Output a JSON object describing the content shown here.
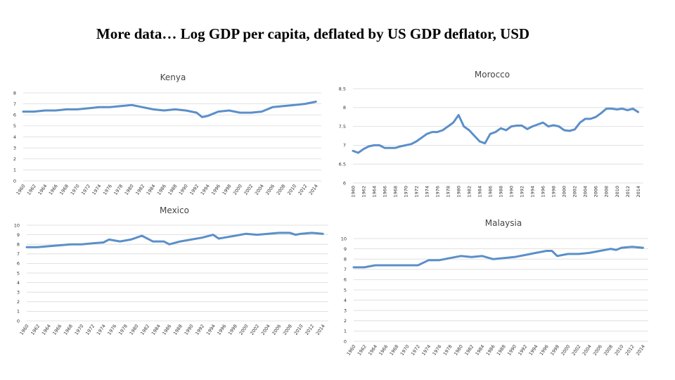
{
  "page": {
    "title": "More data… Log GDP per capita, deflated by US GDP deflator, USD"
  },
  "chart_data": [
    {
      "id": "kenya",
      "type": "line",
      "title": "Kenya",
      "xlabel": "",
      "ylabel": "",
      "ylim": [
        0,
        8
      ],
      "yticks": [
        "0",
        "1",
        "2",
        "3",
        "4",
        "5",
        "6",
        "7",
        "8"
      ],
      "xticks": [
        "1960",
        "1962",
        "1964",
        "1966",
        "1968",
        "1970",
        "1972",
        "1974",
        "1976",
        "1978",
        "1980",
        "1982",
        "1984",
        "1986",
        "1988",
        "1990",
        "1992",
        "1994",
        "1996",
        "1998",
        "2000",
        "2002",
        "2004",
        "2006",
        "2008",
        "2010",
        "2012",
        "2014"
      ],
      "x": [
        1960,
        1962,
        1964,
        1966,
        1968,
        1970,
        1972,
        1974,
        1976,
        1978,
        1980,
        1982,
        1984,
        1986,
        1988,
        1990,
        1992,
        1993,
        1994,
        1996,
        1998,
        2000,
        2002,
        2004,
        2006,
        2008,
        2010,
        2012,
        2014
      ],
      "values": [
        6.3,
        6.3,
        6.4,
        6.4,
        6.5,
        6.5,
        6.6,
        6.7,
        6.7,
        6.8,
        6.9,
        6.7,
        6.5,
        6.4,
        6.5,
        6.4,
        6.2,
        5.8,
        5.9,
        6.3,
        6.4,
        6.2,
        6.2,
        6.3,
        6.7,
        6.8,
        6.9,
        7.0,
        7.2
      ],
      "grid": true,
      "legend": "none"
    },
    {
      "id": "morocco",
      "type": "line",
      "title": "Morocco",
      "xlabel": "",
      "ylabel": "",
      "ylim": [
        6,
        8.5
      ],
      "yticks": [
        "6",
        "6.5",
        "7",
        "7.5",
        "8",
        "8.5"
      ],
      "xticks": [
        "1960",
        "1962",
        "1964",
        "1966",
        "1968",
        "1970",
        "1972",
        "1974",
        "1976",
        "1978",
        "1980",
        "1982",
        "1984",
        "1986",
        "1988",
        "1990",
        "1992",
        "1994",
        "1996",
        "1998",
        "2000",
        "2002",
        "2004",
        "2006",
        "2008",
        "2010",
        "2012",
        "2014"
      ],
      "x": [
        1960,
        1961,
        1962,
        1963,
        1964,
        1965,
        1966,
        1967,
        1968,
        1969,
        1970,
        1971,
        1972,
        1973,
        1974,
        1975,
        1976,
        1977,
        1978,
        1979,
        1980,
        1981,
        1982,
        1983,
        1984,
        1985,
        1986,
        1987,
        1988,
        1989,
        1990,
        1991,
        1992,
        1993,
        1994,
        1995,
        1996,
        1997,
        1998,
        1999,
        2000,
        2001,
        2002,
        2003,
        2004,
        2005,
        2006,
        2007,
        2008,
        2009,
        2010,
        2011,
        2012,
        2013,
        2014
      ],
      "values": [
        6.85,
        6.8,
        6.9,
        6.97,
        7.0,
        7.0,
        6.93,
        6.93,
        6.93,
        6.97,
        7.0,
        7.03,
        7.1,
        7.2,
        7.3,
        7.35,
        7.35,
        7.4,
        7.5,
        7.6,
        7.8,
        7.5,
        7.4,
        7.25,
        7.1,
        7.05,
        7.3,
        7.35,
        7.45,
        7.4,
        7.5,
        7.52,
        7.52,
        7.43,
        7.5,
        7.55,
        7.6,
        7.5,
        7.53,
        7.5,
        7.4,
        7.38,
        7.42,
        7.6,
        7.7,
        7.7,
        7.75,
        7.85,
        7.97,
        7.97,
        7.95,
        7.97,
        7.93,
        7.97,
        7.88
      ],
      "grid": true,
      "legend": "none"
    },
    {
      "id": "mexico",
      "type": "line",
      "title": "Mexico",
      "xlabel": "",
      "ylabel": "",
      "ylim": [
        0,
        10
      ],
      "yticks": [
        "0",
        "1",
        "2",
        "3",
        "4",
        "5",
        "6",
        "7",
        "8",
        "9",
        "10"
      ],
      "xticks": [
        "1960",
        "1962",
        "1964",
        "1966",
        "1968",
        "1970",
        "1972",
        "1974",
        "1976",
        "1978",
        "1980",
        "1982",
        "1984",
        "1986",
        "1988",
        "1990",
        "1992",
        "1994",
        "1996",
        "1998",
        "2000",
        "2002",
        "2004",
        "2006",
        "2008",
        "2010",
        "2012",
        "2014"
      ],
      "x": [
        1960,
        1962,
        1964,
        1966,
        1968,
        1970,
        1972,
        1974,
        1975,
        1977,
        1979,
        1981,
        1983,
        1985,
        1986,
        1988,
        1990,
        1992,
        1994,
        1995,
        1996,
        1998,
        2000,
        2002,
        2004,
        2006,
        2008,
        2009,
        2010,
        2012,
        2014
      ],
      "values": [
        7.7,
        7.7,
        7.8,
        7.9,
        8.0,
        8.0,
        8.1,
        8.2,
        8.5,
        8.3,
        8.5,
        8.9,
        8.3,
        8.3,
        8.0,
        8.3,
        8.5,
        8.7,
        9.0,
        8.6,
        8.7,
        8.9,
        9.1,
        9.0,
        9.1,
        9.2,
        9.2,
        9.0,
        9.1,
        9.2,
        9.1
      ],
      "grid": true,
      "legend": "none"
    },
    {
      "id": "malaysia",
      "type": "line",
      "title": "Malaysia",
      "xlabel": "",
      "ylabel": "",
      "ylim": [
        0,
        10
      ],
      "yticks": [
        "0",
        "1",
        "2",
        "3",
        "4",
        "5",
        "6",
        "7",
        "8",
        "9",
        "10"
      ],
      "xticks": [
        "1960",
        "1962",
        "1964",
        "1966",
        "1968",
        "1970",
        "1972",
        "1974",
        "1976",
        "1978",
        "1980",
        "1982",
        "1984",
        "1986",
        "1988",
        "1990",
        "1992",
        "1994",
        "1996",
        "1998",
        "2000",
        "2002",
        "2004",
        "2006",
        "2008",
        "2010",
        "2012",
        "2014"
      ],
      "x": [
        1960,
        1962,
        1964,
        1966,
        1968,
        1970,
        1972,
        1974,
        1976,
        1978,
        1980,
        1982,
        1984,
        1986,
        1988,
        1990,
        1992,
        1994,
        1996,
        1997,
        1998,
        2000,
        2002,
        2004,
        2006,
        2008,
        2009,
        2010,
        2012,
        2014
      ],
      "values": [
        7.2,
        7.2,
        7.4,
        7.4,
        7.4,
        7.4,
        7.4,
        7.9,
        7.9,
        8.1,
        8.3,
        8.2,
        8.3,
        8.0,
        8.1,
        8.2,
        8.4,
        8.6,
        8.8,
        8.8,
        8.3,
        8.5,
        8.5,
        8.6,
        8.8,
        9.0,
        8.9,
        9.1,
        9.2,
        9.1
      ],
      "grid": true,
      "legend": "none"
    }
  ]
}
